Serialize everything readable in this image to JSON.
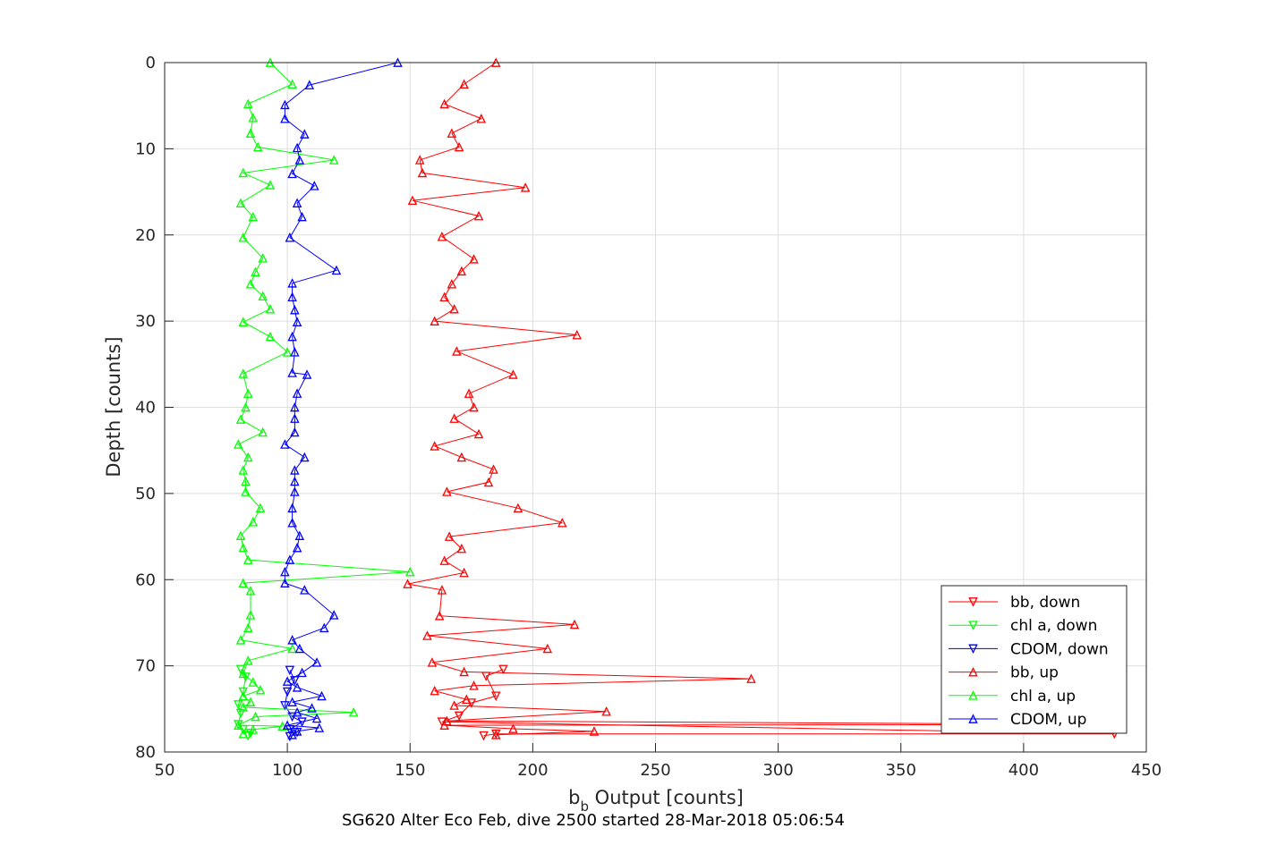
{
  "chart_data": {
    "type": "line",
    "xlabel_main": "b",
    "xlabel_sub": "b",
    "xlabel_rest": " Output [counts]",
    "ylabel": "Depth [counts]",
    "caption": "SG620 Alter Eco Feb, dive 2500 started 28-Mar-2018 05:06:54",
    "xlim": [
      50,
      450
    ],
    "ylim": [
      0,
      80
    ],
    "y_reversed": true,
    "grid": true,
    "xticks": [
      "50",
      "100",
      "150",
      "200",
      "250",
      "300",
      "350",
      "400",
      "450"
    ],
    "yticks": [
      "0",
      "10",
      "20",
      "30",
      "40",
      "50",
      "60",
      "70",
      "80"
    ],
    "legend_position": "bottom-right",
    "series": [
      {
        "name": "bb, down",
        "color": "#ff0000",
        "marker": "down",
        "x": [
          188,
          181,
          185,
          175,
          170,
          163,
          437,
          185,
          180
        ],
        "y": [
          70.4,
          71.2,
          73.5,
          74.3,
          75.8,
          76.5,
          77.9,
          77.9,
          78.1
        ]
      },
      {
        "name": "chl a, down",
        "color": "#00ff00",
        "marker": "down",
        "x": [
          81,
          83,
          82,
          80,
          81,
          80,
          82,
          85,
          84
        ],
        "y": [
          70.4,
          71.3,
          73.0,
          74.5,
          75.5,
          76.8,
          77.4,
          77.8,
          78.1
        ]
      },
      {
        "name": "CDOM, down",
        "color": "#0000ff",
        "marker": "down",
        "x": [
          101,
          103,
          100,
          99,
          102,
          106,
          101,
          104,
          101
        ],
        "y": [
          70.5,
          71.7,
          73.0,
          74.6,
          75.9,
          76.5,
          77.4,
          77.7,
          78.2
        ]
      },
      {
        "name": "bb, up",
        "color": "#ff0000",
        "marker": "up",
        "x": [
          185,
          172,
          164,
          179,
          167,
          170,
          154,
          155,
          197,
          151,
          178,
          163,
          176,
          171,
          167,
          164,
          168,
          160,
          218,
          169,
          192,
          174,
          176,
          168,
          178,
          160,
          171,
          184,
          182,
          165,
          194,
          212,
          166,
          171,
          164,
          172,
          149,
          163,
          162,
          217,
          157,
          206,
          159,
          172,
          289,
          176,
          160,
          173,
          168,
          230,
          165,
          437,
          164,
          192,
          225,
          185
        ],
        "y": [
          0,
          2.5,
          4.8,
          6.5,
          8.2,
          9.8,
          11.3,
          12.8,
          14.5,
          16.0,
          17.8,
          20.2,
          22.8,
          24.2,
          25.7,
          27.2,
          28.6,
          30.0,
          31.6,
          33.5,
          36.2,
          38.4,
          40.0,
          41.3,
          43.1,
          44.5,
          45.8,
          47.2,
          48.7,
          49.8,
          51.7,
          53.4,
          55.0,
          56.4,
          57.8,
          59.2,
          60.5,
          61.2,
          64.2,
          65.2,
          66.5,
          68.0,
          69.6,
          70.7,
          71.5,
          72.3,
          72.9,
          73.9,
          74.6,
          75.3,
          76.4,
          76.8,
          76.9,
          77.3,
          77.6,
          78.0
        ]
      },
      {
        "name": "chl a, up",
        "color": "#00ff00",
        "marker": "up",
        "x": [
          93,
          102,
          84,
          86,
          85,
          88,
          119,
          82,
          93,
          81,
          86,
          82,
          90,
          87,
          85,
          90,
          93,
          82,
          93,
          100,
          82,
          84,
          83,
          81,
          90,
          80,
          84,
          82,
          83,
          83,
          89,
          86,
          81,
          82,
          84,
          150,
          82,
          85,
          85,
          84,
          81,
          102,
          84,
          82,
          86,
          89,
          82,
          85,
          82,
          127,
          87,
          80,
          98,
          86,
          82
        ],
        "y": [
          0,
          2.5,
          4.8,
          6.4,
          8.2,
          9.8,
          11.3,
          12.8,
          14.2,
          16.3,
          17.9,
          20.3,
          22.7,
          24.3,
          25.7,
          27.1,
          28.6,
          30.1,
          31.8,
          33.6,
          36.1,
          38.4,
          40.0,
          41.4,
          42.9,
          44.3,
          45.8,
          47.3,
          48.6,
          49.8,
          51.7,
          53.3,
          54.9,
          56.3,
          57.7,
          59.1,
          60.4,
          61.3,
          64.1,
          65.6,
          67.0,
          68.0,
          69.4,
          70.9,
          71.9,
          72.8,
          73.5,
          74.2,
          74.8,
          75.4,
          75.9,
          76.9,
          77.0,
          77.4,
          77.9
        ]
      },
      {
        "name": "CDOM, up",
        "color": "#0000ff",
        "marker": "up",
        "x": [
          145,
          109,
          99,
          99,
          107,
          104,
          105,
          102,
          111,
          104,
          106,
          101,
          120,
          102,
          102,
          103,
          104,
          102,
          103,
          102,
          108,
          104,
          103,
          103,
          103,
          99,
          107,
          103,
          103,
          103,
          102,
          102,
          105,
          104,
          101,
          99,
          99,
          107,
          119,
          115,
          102,
          105,
          112,
          106,
          100,
          104,
          114,
          102,
          110,
          104,
          112,
          100,
          113,
          104,
          102
        ],
        "y": [
          0,
          2.6,
          4.9,
          6.5,
          8.3,
          9.9,
          11.3,
          12.9,
          14.3,
          16.3,
          17.9,
          20.3,
          24.1,
          25.6,
          27.2,
          28.7,
          30.1,
          31.8,
          33.6,
          36.0,
          36.2,
          38.4,
          40.0,
          41.3,
          42.9,
          44.3,
          45.8,
          47.3,
          48.6,
          49.8,
          51.7,
          53.4,
          54.9,
          56.3,
          57.7,
          59.1,
          60.4,
          61.2,
          64.1,
          65.6,
          67.0,
          68.0,
          69.6,
          70.8,
          71.8,
          72.5,
          73.5,
          74.2,
          74.9,
          75.4,
          76.1,
          76.9,
          77.2,
          77.6,
          78.0
        ]
      }
    ]
  }
}
